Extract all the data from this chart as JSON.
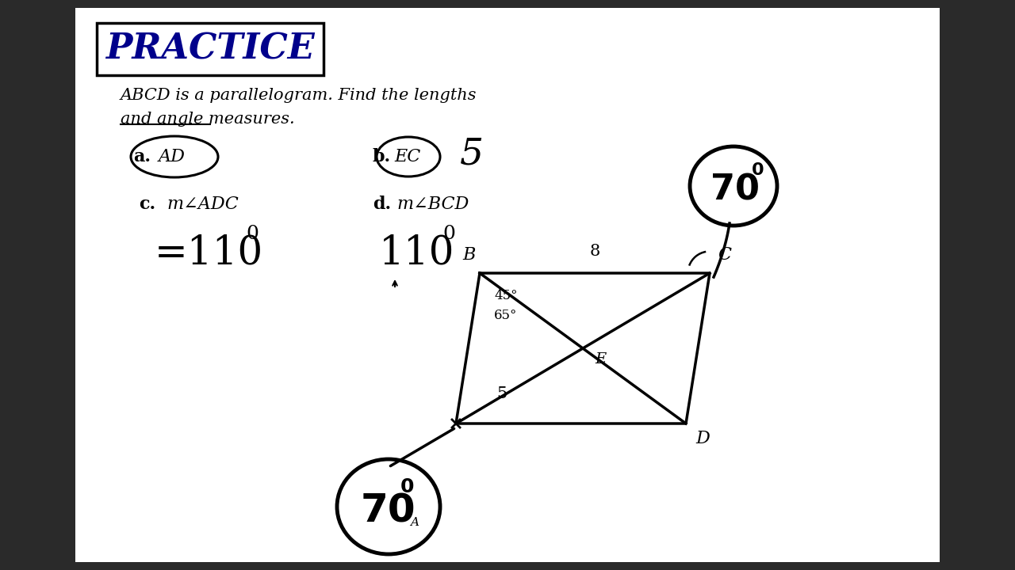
{
  "bg_color": "#2a2a2a",
  "white_bg": "#ffffff",
  "title_text": "PRACTICE",
  "title_color": "#00008B",
  "subtitle_line1": "ABCD is a parallelogram. Find the lengths",
  "subtitle_line2": "and angle measures.",
  "label_a": "a.",
  "label_a_var": "AD",
  "label_b": "b.",
  "label_b_var": "EC",
  "label_b_ans": "5",
  "label_c": "c.",
  "label_c_var": "m∠ADC",
  "label_c_ans": "=110",
  "label_d": "d.",
  "label_d_var": "m∠BCD",
  "label_d_ans": "110",
  "para_E_label": "E",
  "side_top": "8",
  "side_bottom": "5",
  "angle_45": "45°",
  "angle_65": "65°",
  "vertex_B": "B",
  "vertex_C": "C",
  "vertex_D": "D"
}
